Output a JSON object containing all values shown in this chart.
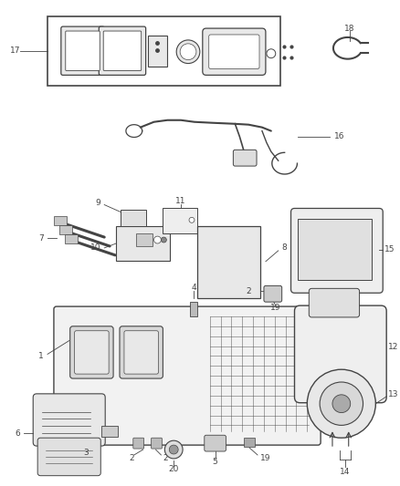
{
  "bg_color": "#ffffff",
  "line_color": "#444444",
  "font_size": 6.5,
  "fig_width": 4.38,
  "fig_height": 5.33,
  "dpi": 100
}
